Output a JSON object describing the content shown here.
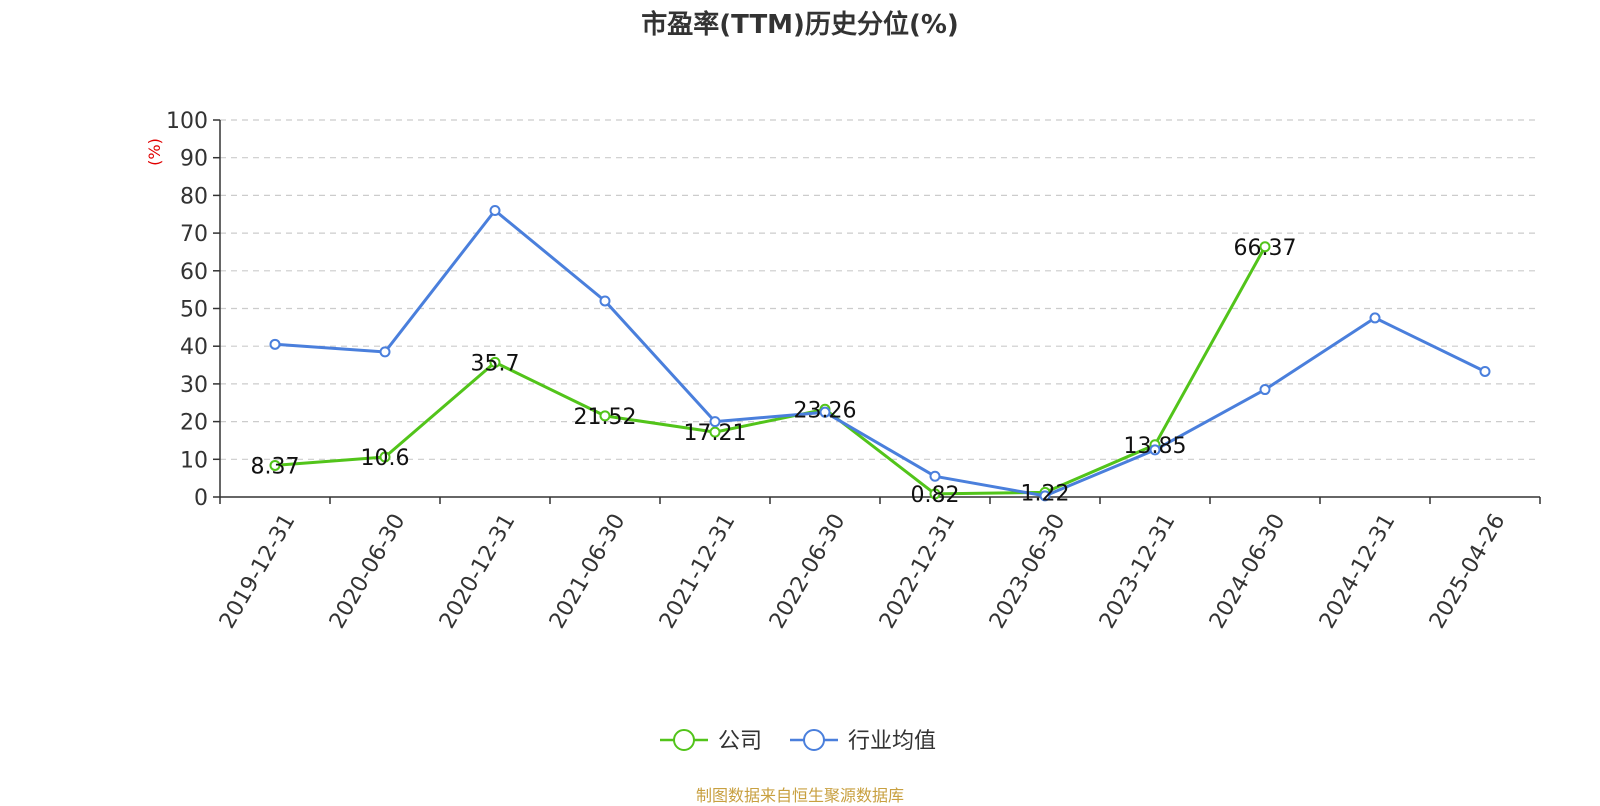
{
  "title": "市盈率(TTM)历史分位(%)",
  "source": "制图数据来自恒生聚源数据库",
  "colors": {
    "source": "#c8a040",
    "ylabel": "#e00000",
    "grid": "#cccccc",
    "axis": "#333333"
  },
  "chart_data": {
    "type": "line",
    "title": "市盈率(TTM)历史分位(%)",
    "ylabel": "(%)",
    "ylim": [
      0,
      100
    ],
    "yticks": [
      "0",
      "10",
      "20",
      "30",
      "40",
      "50",
      "60",
      "70",
      "80",
      "90",
      "100"
    ],
    "grid": true,
    "legend_position": "bottom",
    "categories": [
      "2019-12-31",
      "2020-06-30",
      "2020-12-31",
      "2021-06-30",
      "2021-12-31",
      "2022-06-30",
      "2022-12-31",
      "2023-06-30",
      "2023-12-31",
      "2024-06-30",
      "2024-12-31",
      "2025-04-26"
    ],
    "series": [
      {
        "name": "公司",
        "color": "#52c41a",
        "values": [
          8.37,
          10.6,
          35.7,
          21.52,
          17.21,
          23.26,
          0.82,
          1.22,
          13.85,
          66.37,
          null,
          null
        ],
        "labels": [
          "8.37",
          "10.6",
          "35.7",
          "21.52",
          "17.21",
          "23.26",
          "0.82",
          "1.22",
          "13.85",
          "66.37",
          "",
          ""
        ]
      },
      {
        "name": "行业均值",
        "color": "#4a7fdc",
        "values": [
          40.5,
          38.5,
          76,
          52,
          20,
          22.5,
          5.5,
          0.3,
          12.5,
          28.5,
          47.5,
          33.3
        ]
      }
    ]
  }
}
